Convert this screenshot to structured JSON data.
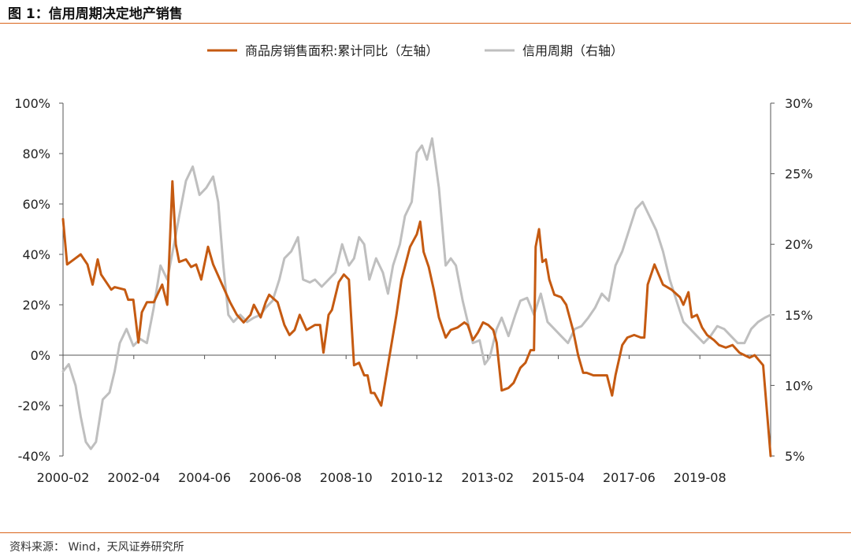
{
  "figure": {
    "title": "图 1：信用周期决定地产销售",
    "source": "资料来源：  Wind，天风证券研究所"
  },
  "colors": {
    "sales": "#c55a11",
    "credit": "#bfbfbf",
    "rule": "#d9651a"
  },
  "chart_data": {
    "type": "line",
    "title": "",
    "legend_position": "top-center",
    "grid": false,
    "x_tick_labels": [
      "2000-02",
      "2002-04",
      "2004-06",
      "2006-08",
      "2008-10",
      "2010-12",
      "2013-02",
      "2015-04",
      "2017-06",
      "2019-08"
    ],
    "y_left": {
      "ticks": [
        "-40%",
        "-20%",
        "0%",
        "20%",
        "40%",
        "60%",
        "80%",
        "100%"
      ],
      "range": [
        -40,
        100
      ]
    },
    "y_right": {
      "ticks": [
        "5%",
        "10%",
        "15%",
        "20%",
        "25%",
        "30%"
      ],
      "range": [
        5,
        30
      ]
    },
    "x_range": [
      2000.08,
      2020.92
    ],
    "series": [
      {
        "name": "商品房销售面积:累计同比（左轴）",
        "axis": "left",
        "color": "#c55a11",
        "points": [
          [
            2000.08,
            54
          ],
          [
            2000.2,
            36
          ],
          [
            2000.4,
            38
          ],
          [
            2000.6,
            40
          ],
          [
            2000.8,
            36
          ],
          [
            2000.95,
            28
          ],
          [
            2001.1,
            38
          ],
          [
            2001.2,
            32
          ],
          [
            2001.5,
            26
          ],
          [
            2001.6,
            27
          ],
          [
            2001.9,
            26
          ],
          [
            2002.0,
            22
          ],
          [
            2002.15,
            22
          ],
          [
            2002.3,
            5
          ],
          [
            2002.4,
            17
          ],
          [
            2002.55,
            21
          ],
          [
            2002.75,
            21
          ],
          [
            2003.0,
            28
          ],
          [
            2003.15,
            20
          ],
          [
            2003.3,
            69
          ],
          [
            2003.4,
            44
          ],
          [
            2003.5,
            37
          ],
          [
            2003.7,
            38
          ],
          [
            2003.85,
            35
          ],
          [
            2004.0,
            36
          ],
          [
            2004.15,
            30
          ],
          [
            2004.35,
            43
          ],
          [
            2004.5,
            36
          ],
          [
            2004.8,
            27
          ],
          [
            2005.0,
            21
          ],
          [
            2005.2,
            16
          ],
          [
            2005.4,
            13
          ],
          [
            2005.6,
            16
          ],
          [
            2005.7,
            20
          ],
          [
            2005.9,
            15
          ],
          [
            2006.05,
            21
          ],
          [
            2006.15,
            24
          ],
          [
            2006.4,
            21
          ],
          [
            2006.6,
            12
          ],
          [
            2006.75,
            8
          ],
          [
            2006.9,
            10
          ],
          [
            2007.05,
            16
          ],
          [
            2007.25,
            10
          ],
          [
            2007.5,
            12
          ],
          [
            2007.65,
            12
          ],
          [
            2007.75,
            1
          ],
          [
            2007.9,
            16
          ],
          [
            2008.0,
            18
          ],
          [
            2008.2,
            29
          ],
          [
            2008.35,
            32
          ],
          [
            2008.5,
            30
          ],
          [
            2008.65,
            -4
          ],
          [
            2008.8,
            -3
          ],
          [
            2008.95,
            -8
          ],
          [
            2009.05,
            -8
          ],
          [
            2009.15,
            -15
          ],
          [
            2009.25,
            -15
          ],
          [
            2009.45,
            -20
          ],
          [
            2009.7,
            0
          ],
          [
            2009.9,
            16
          ],
          [
            2010.05,
            30
          ],
          [
            2010.3,
            43
          ],
          [
            2010.5,
            48
          ],
          [
            2010.6,
            53
          ],
          [
            2010.7,
            41
          ],
          [
            2010.85,
            35
          ],
          [
            2011.0,
            26
          ],
          [
            2011.15,
            15
          ],
          [
            2011.35,
            7
          ],
          [
            2011.5,
            10
          ],
          [
            2011.7,
            11
          ],
          [
            2011.9,
            13
          ],
          [
            2012.0,
            12
          ],
          [
            2012.15,
            6
          ],
          [
            2012.3,
            9
          ],
          [
            2012.45,
            13
          ],
          [
            2012.6,
            12
          ],
          [
            2012.75,
            10
          ],
          [
            2012.85,
            5
          ],
          [
            2013.0,
            -14
          ],
          [
            2013.2,
            -13
          ],
          [
            2013.35,
            -11
          ],
          [
            2013.55,
            -5
          ],
          [
            2013.7,
            -3
          ],
          [
            2013.85,
            2
          ],
          [
            2013.95,
            2
          ],
          [
            2014.0,
            43
          ],
          [
            2014.1,
            50
          ],
          [
            2014.2,
            37
          ],
          [
            2014.3,
            38
          ],
          [
            2014.4,
            30
          ],
          [
            2014.55,
            24
          ],
          [
            2014.75,
            23
          ],
          [
            2014.9,
            20
          ],
          [
            2015.0,
            15
          ],
          [
            2015.1,
            10
          ],
          [
            2015.25,
            0
          ],
          [
            2015.4,
            -7
          ],
          [
            2015.5,
            -7
          ],
          [
            2015.7,
            -8
          ],
          [
            2015.9,
            -8
          ],
          [
            2016.1,
            -8
          ],
          [
            2016.25,
            -16
          ],
          [
            2016.35,
            -8
          ],
          [
            2016.55,
            4
          ],
          [
            2016.7,
            7
          ],
          [
            2016.9,
            8
          ],
          [
            2017.1,
            7
          ],
          [
            2017.2,
            7
          ],
          [
            2017.3,
            28
          ],
          [
            2017.5,
            36
          ],
          [
            2017.75,
            28
          ],
          [
            2018.0,
            26
          ],
          [
            2018.25,
            23
          ],
          [
            2018.35,
            20
          ],
          [
            2018.5,
            25
          ],
          [
            2018.6,
            15
          ],
          [
            2018.75,
            16
          ],
          [
            2018.9,
            11
          ],
          [
            2019.05,
            8
          ],
          [
            2019.25,
            6
          ],
          [
            2019.4,
            4
          ],
          [
            2019.6,
            3
          ],
          [
            2019.8,
            4
          ],
          [
            2020.0,
            1
          ],
          [
            2020.15,
            0
          ],
          [
            2020.3,
            -1
          ],
          [
            2020.45,
            0
          ],
          [
            2020.7,
            -4
          ],
          [
            2020.92,
            -40
          ]
        ]
      },
      {
        "name": "信用周期（右轴）",
        "axis": "right",
        "color": "#bfbfbf",
        "points": [
          [
            2000.08,
            11
          ],
          [
            2000.25,
            11.5
          ],
          [
            2000.45,
            10
          ],
          [
            2000.6,
            7.8
          ],
          [
            2000.75,
            6
          ],
          [
            2000.9,
            5.5
          ],
          [
            2001.05,
            6
          ],
          [
            2001.25,
            9
          ],
          [
            2001.45,
            9.5
          ],
          [
            2001.6,
            11
          ],
          [
            2001.75,
            13
          ],
          [
            2001.95,
            14
          ],
          [
            2002.15,
            12.8
          ],
          [
            2002.35,
            13.3
          ],
          [
            2002.55,
            13
          ],
          [
            2002.75,
            15.5
          ],
          [
            2002.95,
            18.5
          ],
          [
            2003.15,
            17.5
          ],
          [
            2003.35,
            20
          ],
          [
            2003.5,
            22
          ],
          [
            2003.7,
            24.5
          ],
          [
            2003.9,
            25.5
          ],
          [
            2004.1,
            23.5
          ],
          [
            2004.3,
            24
          ],
          [
            2004.5,
            24.8
          ],
          [
            2004.65,
            23
          ],
          [
            2004.8,
            18.5
          ],
          [
            2004.95,
            15
          ],
          [
            2005.1,
            14.5
          ],
          [
            2005.3,
            15
          ],
          [
            2005.5,
            14.5
          ],
          [
            2005.7,
            14.8
          ],
          [
            2005.9,
            15
          ],
          [
            2006.05,
            15.5
          ],
          [
            2006.25,
            16
          ],
          [
            2006.45,
            17.5
          ],
          [
            2006.6,
            19
          ],
          [
            2006.8,
            19.5
          ],
          [
            2007.0,
            20.5
          ],
          [
            2007.15,
            17.5
          ],
          [
            2007.35,
            17.3
          ],
          [
            2007.5,
            17.5
          ],
          [
            2007.7,
            17
          ],
          [
            2007.9,
            17.5
          ],
          [
            2008.1,
            18
          ],
          [
            2008.3,
            20
          ],
          [
            2008.5,
            18.5
          ],
          [
            2008.65,
            19
          ],
          [
            2008.8,
            20.5
          ],
          [
            2008.95,
            20
          ],
          [
            2009.1,
            17.5
          ],
          [
            2009.3,
            19
          ],
          [
            2009.5,
            18
          ],
          [
            2009.65,
            16.5
          ],
          [
            2009.8,
            18.5
          ],
          [
            2010.0,
            20
          ],
          [
            2010.15,
            22
          ],
          [
            2010.35,
            23
          ],
          [
            2010.5,
            26.5
          ],
          [
            2010.65,
            27
          ],
          [
            2010.8,
            26
          ],
          [
            2010.95,
            27.5
          ],
          [
            2011.15,
            24
          ],
          [
            2011.35,
            18.5
          ],
          [
            2011.5,
            19
          ],
          [
            2011.65,
            18.5
          ],
          [
            2011.85,
            16
          ],
          [
            2012.0,
            14.5
          ],
          [
            2012.15,
            13
          ],
          [
            2012.35,
            13.2
          ],
          [
            2012.5,
            11.5
          ],
          [
            2012.65,
            12
          ],
          [
            2012.85,
            14
          ],
          [
            2013.0,
            14.8
          ],
          [
            2013.2,
            13.5
          ],
          [
            2013.4,
            15
          ],
          [
            2013.55,
            16
          ],
          [
            2013.75,
            16.2
          ],
          [
            2013.95,
            15
          ],
          [
            2014.15,
            16.5
          ],
          [
            2014.35,
            14.5
          ],
          [
            2014.55,
            14
          ],
          [
            2014.75,
            13.5
          ],
          [
            2014.95,
            13
          ],
          [
            2015.15,
            14
          ],
          [
            2015.35,
            14.2
          ],
          [
            2015.55,
            14.8
          ],
          [
            2015.75,
            15.5
          ],
          [
            2015.95,
            16.5
          ],
          [
            2016.15,
            16
          ],
          [
            2016.35,
            18.5
          ],
          [
            2016.55,
            19.5
          ],
          [
            2016.75,
            21
          ],
          [
            2016.95,
            22.5
          ],
          [
            2017.15,
            23
          ],
          [
            2017.35,
            22
          ],
          [
            2017.55,
            21
          ],
          [
            2017.75,
            19.5
          ],
          [
            2017.95,
            17.5
          ],
          [
            2018.15,
            16
          ],
          [
            2018.35,
            14.5
          ],
          [
            2018.55,
            14
          ],
          [
            2018.75,
            13.5
          ],
          [
            2018.95,
            13
          ],
          [
            2019.15,
            13.5
          ],
          [
            2019.35,
            14.2
          ],
          [
            2019.55,
            14
          ],
          [
            2019.75,
            13.5
          ],
          [
            2019.95,
            13
          ],
          [
            2020.15,
            13
          ],
          [
            2020.35,
            14
          ],
          [
            2020.55,
            14.5
          ],
          [
            2020.75,
            14.8
          ],
          [
            2020.92,
            15
          ]
        ]
      }
    ]
  }
}
